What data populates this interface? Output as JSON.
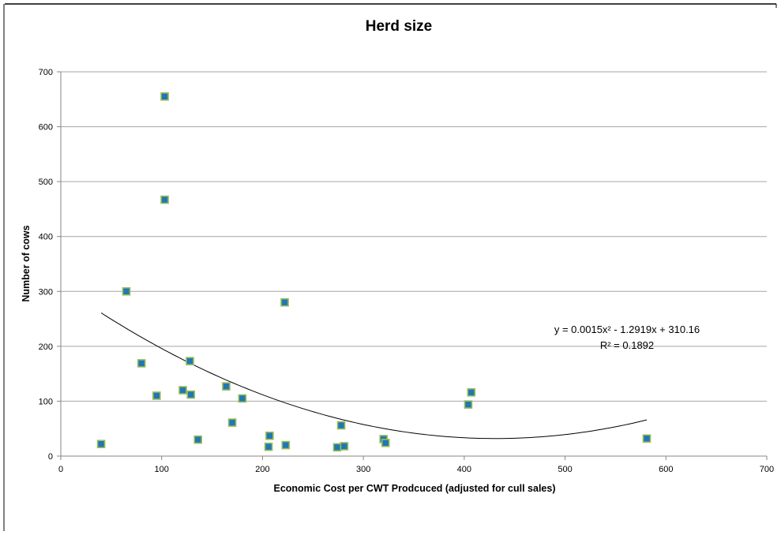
{
  "chart_data": {
    "type": "scatter",
    "title": "Herd size",
    "xlabel": "Economic Cost per CWT Prodcuced (adjusted for cull sales)",
    "ylabel": "Number of cows",
    "xlim": [
      0,
      700
    ],
    "ylim": [
      0,
      700
    ],
    "xticks": [
      0,
      100,
      200,
      300,
      400,
      500,
      600,
      700
    ],
    "yticks": [
      0,
      100,
      200,
      300,
      400,
      500,
      600,
      700
    ],
    "x_gridlines": false,
    "y_gridlines": true,
    "marker": "square",
    "marker_fill": "#1F78B4",
    "marker_edge": "#9BBB59",
    "points": [
      {
        "x": 40,
        "y": 22
      },
      {
        "x": 65,
        "y": 300
      },
      {
        "x": 80,
        "y": 169
      },
      {
        "x": 95,
        "y": 110
      },
      {
        "x": 103,
        "y": 655
      },
      {
        "x": 103,
        "y": 467
      },
      {
        "x": 121,
        "y": 120
      },
      {
        "x": 128,
        "y": 173
      },
      {
        "x": 129,
        "y": 112
      },
      {
        "x": 136,
        "y": 30
      },
      {
        "x": 164,
        "y": 127
      },
      {
        "x": 170,
        "y": 61
      },
      {
        "x": 180,
        "y": 105
      },
      {
        "x": 206,
        "y": 17
      },
      {
        "x": 207,
        "y": 37
      },
      {
        "x": 222,
        "y": 280
      },
      {
        "x": 223,
        "y": 20
      },
      {
        "x": 274,
        "y": 16
      },
      {
        "x": 278,
        "y": 56
      },
      {
        "x": 281,
        "y": 18
      },
      {
        "x": 320,
        "y": 31
      },
      {
        "x": 322,
        "y": 24
      },
      {
        "x": 404,
        "y": 94
      },
      {
        "x": 407,
        "y": 116
      },
      {
        "x": 581,
        "y": 32
      }
    ],
    "trendline": {
      "type": "polynomial",
      "coefficients": [
        0.0015,
        -1.2919,
        310.16
      ],
      "x_range": [
        40,
        581
      ],
      "color": "#000000",
      "equation_text": "y = 0.0015x² - 1.2919x + 310.16",
      "r2_text": "R² = 0.1892"
    },
    "gridline_color": "#A6A6A6",
    "axis_color": "#868686"
  }
}
